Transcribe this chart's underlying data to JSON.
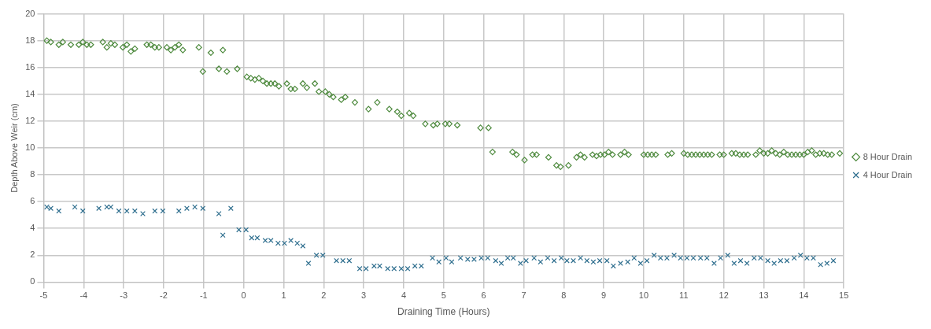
{
  "chart_data": {
    "type": "scatter",
    "xlabel": "Draining Time (Hours)",
    "ylabel": "Depth Above Weir (cm)",
    "xlim": [
      -5,
      15
    ],
    "xticks": [
      -5,
      -4,
      -3,
      -2,
      -1,
      0,
      1,
      2,
      3,
      4,
      5,
      6,
      7,
      8,
      9,
      10,
      11,
      12,
      13,
      14,
      15
    ],
    "ylim": [
      0,
      20
    ],
    "yticks": [
      0,
      2,
      4,
      6,
      8,
      10,
      12,
      14,
      16,
      18,
      20
    ],
    "grid": true,
    "legend": "right",
    "series": [
      {
        "name": "8 Hour Drain",
        "color": "#4e8a3e",
        "marker": "diamond",
        "x": [
          -4.92,
          -4.82,
          -4.62,
          -4.52,
          -4.32,
          -4.12,
          -4.02,
          -3.92,
          -3.82,
          -3.52,
          -3.42,
          -3.32,
          -3.22,
          -3.02,
          -2.92,
          -2.82,
          -2.72,
          -2.42,
          -2.32,
          -2.22,
          -2.12,
          -1.92,
          -1.82,
          -1.72,
          -1.62,
          -1.52,
          -1.12,
          -1.02,
          -0.82,
          -0.62,
          -0.52,
          -0.42,
          -0.16,
          0.08,
          0.18,
          0.28,
          0.38,
          0.48,
          0.58,
          0.68,
          0.78,
          0.88,
          1.08,
          1.18,
          1.28,
          1.48,
          1.58,
          1.78,
          1.88,
          2.04,
          2.14,
          2.24,
          2.44,
          2.54,
          2.78,
          3.12,
          3.34,
          3.64,
          3.84,
          3.94,
          4.14,
          4.24,
          4.54,
          4.74,
          4.84,
          5.04,
          5.14,
          5.34,
          5.92,
          6.12,
          6.22,
          6.72,
          6.82,
          7.02,
          7.22,
          7.32,
          7.62,
          7.82,
          7.92,
          8.12,
          8.32,
          8.42,
          8.52,
          8.72,
          8.82,
          8.92,
          9.02,
          9.12,
          9.22,
          9.42,
          9.52,
          9.62,
          10.0,
          10.1,
          10.2,
          10.3,
          10.6,
          10.7,
          11.0,
          11.1,
          11.2,
          11.3,
          11.4,
          11.5,
          11.6,
          11.7,
          11.9,
          12.0,
          12.2,
          12.3,
          12.4,
          12.5,
          12.6,
          12.8,
          12.9,
          13.0,
          13.1,
          13.2,
          13.3,
          13.4,
          13.5,
          13.6,
          13.7,
          13.8,
          13.9,
          14.0,
          14.1,
          14.2,
          14.3,
          14.4,
          14.5,
          14.6,
          14.7,
          14.9
        ],
        "values": [
          18.0,
          17.9,
          17.7,
          17.9,
          17.7,
          17.7,
          17.9,
          17.7,
          17.7,
          17.9,
          17.5,
          17.8,
          17.7,
          17.5,
          17.7,
          17.2,
          17.4,
          17.7,
          17.7,
          17.5,
          17.5,
          17.5,
          17.3,
          17.5,
          17.7,
          17.3,
          17.5,
          15.7,
          17.1,
          15.9,
          17.3,
          15.7,
          15.9,
          15.3,
          15.2,
          15.1,
          15.2,
          15.0,
          14.8,
          14.8,
          14.8,
          14.6,
          14.8,
          14.4,
          14.4,
          14.8,
          14.5,
          14.8,
          14.2,
          14.2,
          14.0,
          13.8,
          13.6,
          13.8,
          13.4,
          12.9,
          13.4,
          12.9,
          12.7,
          12.4,
          12.6,
          12.4,
          11.8,
          11.7,
          11.8,
          11.8,
          11.8,
          11.7,
          11.5,
          11.5,
          9.7,
          9.7,
          9.5,
          9.1,
          9.5,
          9.5,
          9.3,
          8.7,
          8.6,
          8.7,
          9.3,
          9.5,
          9.3,
          9.5,
          9.4,
          9.5,
          9.5,
          9.7,
          9.5,
          9.5,
          9.7,
          9.5,
          9.5,
          9.5,
          9.5,
          9.5,
          9.5,
          9.6,
          9.6,
          9.5,
          9.5,
          9.5,
          9.5,
          9.5,
          9.5,
          9.5,
          9.5,
          9.5,
          9.6,
          9.6,
          9.5,
          9.5,
          9.5,
          9.5,
          9.8,
          9.6,
          9.6,
          9.8,
          9.6,
          9.5,
          9.7,
          9.5,
          9.5,
          9.5,
          9.5,
          9.5,
          9.7,
          9.8,
          9.5,
          9.6,
          9.6,
          9.5,
          9.5,
          9.6
        ]
      },
      {
        "name": "4 Hour Drain",
        "color": "#2e6e8e",
        "marker": "cross",
        "x": [
          -4.92,
          -4.82,
          -4.62,
          -4.22,
          -4.02,
          -3.62,
          -3.42,
          -3.32,
          -3.12,
          -2.92,
          -2.72,
          -2.52,
          -2.22,
          -2.02,
          -1.62,
          -1.42,
          -1.22,
          -1.02,
          -0.62,
          -0.52,
          -0.32,
          -0.12,
          0.06,
          0.2,
          0.34,
          0.54,
          0.68,
          0.86,
          1.02,
          1.18,
          1.34,
          1.48,
          1.62,
          1.82,
          1.98,
          2.32,
          2.48,
          2.64,
          2.9,
          3.06,
          3.26,
          3.4,
          3.6,
          3.76,
          3.94,
          4.1,
          4.28,
          4.44,
          4.72,
          4.88,
          5.06,
          5.2,
          5.42,
          5.6,
          5.76,
          5.94,
          6.1,
          6.3,
          6.44,
          6.6,
          6.74,
          6.92,
          7.06,
          7.26,
          7.42,
          7.6,
          7.76,
          7.94,
          8.08,
          8.24,
          8.42,
          8.58,
          8.74,
          8.9,
          9.08,
          9.24,
          9.42,
          9.6,
          9.76,
          9.92,
          10.08,
          10.26,
          10.42,
          10.58,
          10.76,
          10.92,
          11.08,
          11.24,
          11.42,
          11.58,
          11.76,
          11.92,
          12.1,
          12.26,
          12.42,
          12.58,
          12.76,
          12.92,
          13.1,
          13.26,
          13.42,
          13.58,
          13.76,
          13.92,
          14.08,
          14.24,
          14.42,
          14.58,
          14.74
        ],
        "values": [
          5.6,
          5.5,
          5.3,
          5.6,
          5.3,
          5.5,
          5.6,
          5.6,
          5.3,
          5.3,
          5.3,
          5.1,
          5.3,
          5.3,
          5.3,
          5.5,
          5.6,
          5.5,
          5.1,
          3.5,
          5.5,
          3.9,
          3.9,
          3.3,
          3.3,
          3.1,
          3.1,
          2.9,
          2.9,
          3.1,
          2.9,
          2.7,
          1.4,
          2.0,
          2.0,
          1.6,
          1.6,
          1.6,
          1.0,
          1.0,
          1.2,
          1.2,
          1.0,
          1.0,
          1.0,
          1.0,
          1.2,
          1.2,
          1.8,
          1.5,
          1.8,
          1.5,
          1.8,
          1.7,
          1.7,
          1.8,
          1.8,
          1.6,
          1.4,
          1.8,
          1.8,
          1.4,
          1.6,
          1.8,
          1.5,
          1.8,
          1.6,
          1.8,
          1.6,
          1.6,
          1.8,
          1.6,
          1.5,
          1.6,
          1.6,
          1.2,
          1.4,
          1.5,
          1.8,
          1.4,
          1.6,
          2.0,
          1.8,
          1.8,
          2.0,
          1.8,
          1.8,
          1.8,
          1.8,
          1.8,
          1.4,
          1.8,
          2.0,
          1.4,
          1.6,
          1.4,
          1.8,
          1.8,
          1.6,
          1.4,
          1.6,
          1.6,
          1.8,
          2.0,
          1.8,
          1.8,
          1.3,
          1.4,
          1.6
        ]
      }
    ]
  }
}
